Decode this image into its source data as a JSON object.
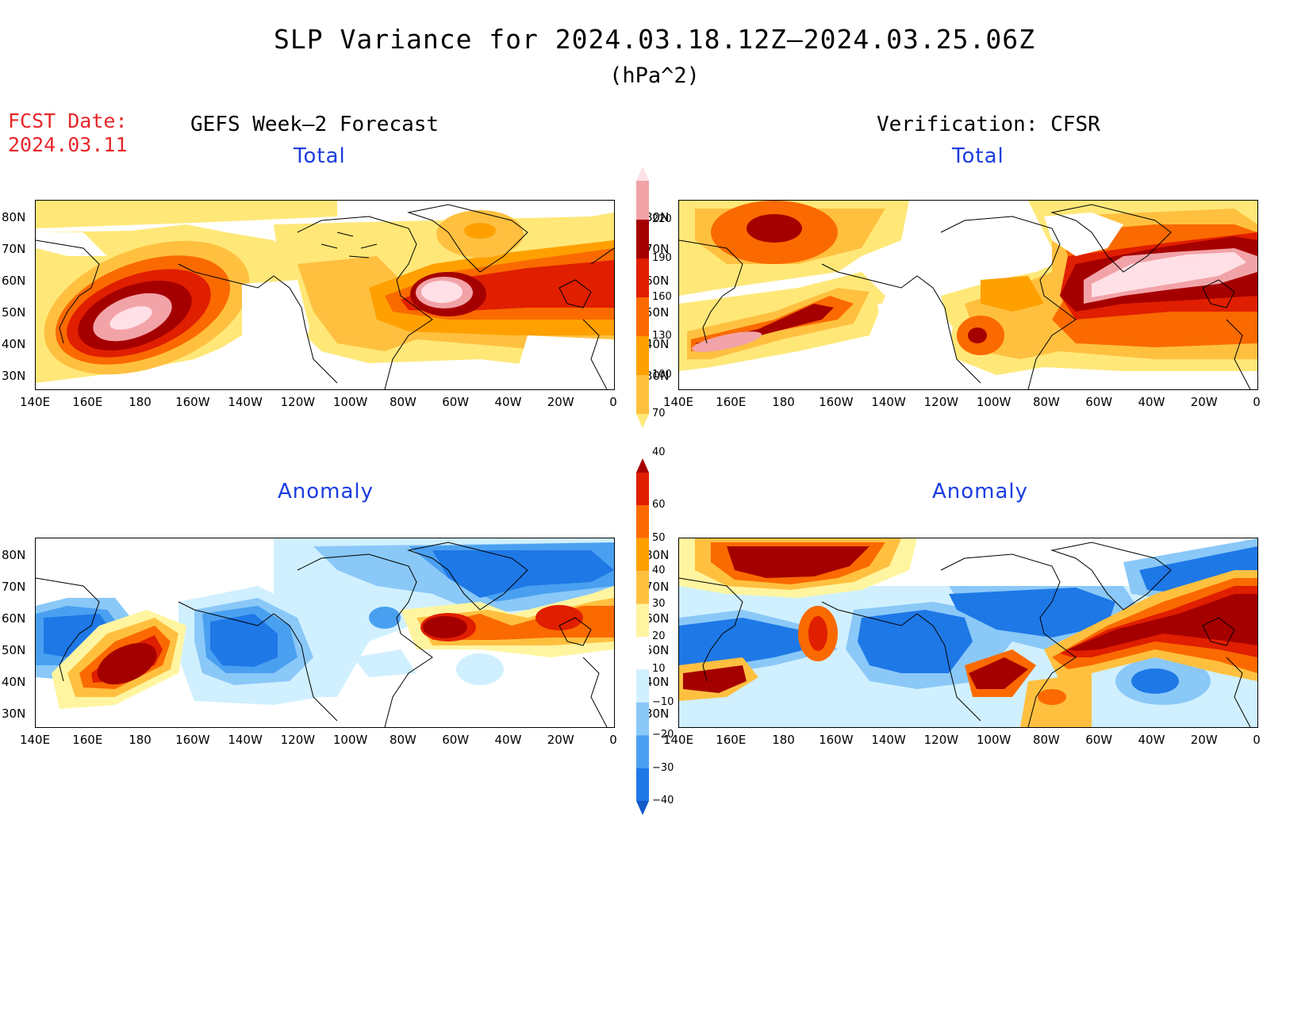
{
  "title": "SLP Variance for 2024.03.18.12Z–2024.03.25.06Z",
  "units": "(hPa^2)",
  "forecast_date_label": "FCST Date:",
  "forecast_date_value": "2024.03.11",
  "left_header": "GEFS Week–2 Forecast",
  "right_header": "Verification: CFSR",
  "panels": {
    "total_forecast_title": "Total",
    "total_verification_title": "Total",
    "anomaly_forecast_title": "Anomaly",
    "anomaly_verification_title": "Anomaly"
  },
  "lat_labels": [
    "80N",
    "70N",
    "60N",
    "50N",
    "40N",
    "30N"
  ],
  "lon_labels": [
    "140E",
    "160E",
    "180",
    "160W",
    "140W",
    "120W",
    "100W",
    "80W",
    "60W",
    "40W",
    "20W",
    "0"
  ],
  "total_colorbar": {
    "levels": [
      "40",
      "70",
      "100",
      "130",
      "160",
      "190",
      "220"
    ],
    "colors": [
      "#ffe878",
      "#ffc040",
      "#ffa000",
      "#fa6a00",
      "#e01e00",
      "#a50000",
      "#f2a3a8",
      "#ffe0e6"
    ]
  },
  "anomaly_colorbar": {
    "levels": [
      "−40",
      "−30",
      "−20",
      "−10",
      "10",
      "20",
      "30",
      "40",
      "50",
      "60"
    ],
    "colors": [
      "#1259c8",
      "#1e78e6",
      "#4aa0f0",
      "#8ac8f8",
      "#d0f0ff",
      "#ffffff",
      "#fff5a0",
      "#ffc040",
      "#ffa000",
      "#fa6a00",
      "#e01e00",
      "#a50000"
    ]
  },
  "colors": {
    "title_red": "#e8262a",
    "subtitle_blue": "#1a3de0"
  }
}
